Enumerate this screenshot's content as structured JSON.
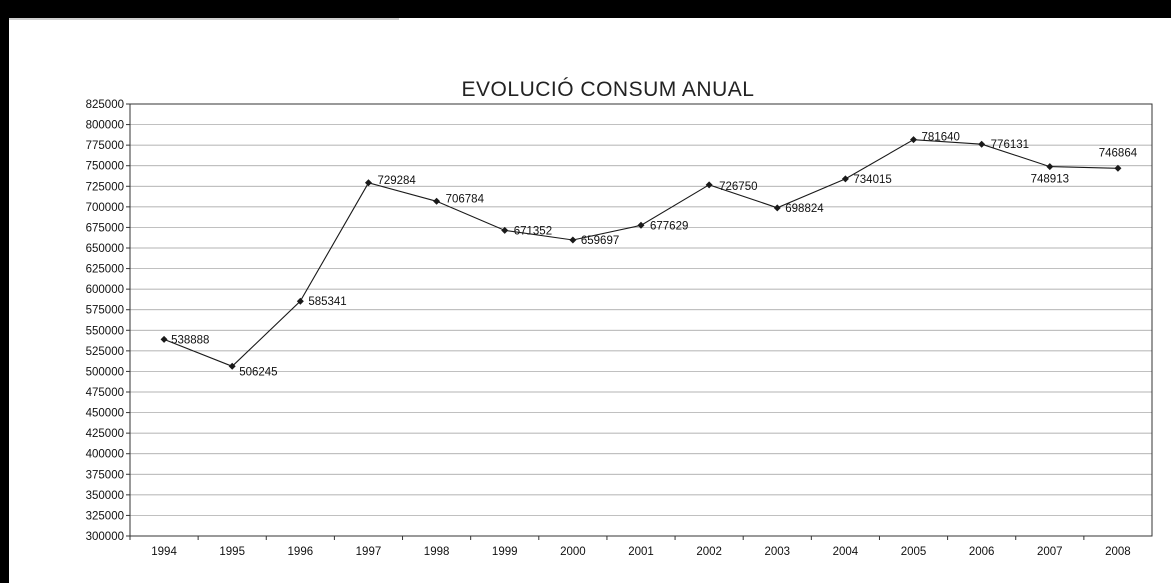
{
  "chart_data": {
    "type": "line",
    "title": "EVOLUCIÓ CONSUM ANUAL",
    "xlabel": "",
    "ylabel": "",
    "categories": [
      "1994",
      "1995",
      "1996",
      "1997",
      "1998",
      "1999",
      "2000",
      "2001",
      "2002",
      "2003",
      "2004",
      "2005",
      "2006",
      "2007",
      "2008"
    ],
    "series": [
      {
        "values": [
          538888,
          506245,
          585341,
          729284,
          706784,
          671352,
          659697,
          677629,
          726750,
          698824,
          734015,
          781640,
          776131,
          748913,
          746864
        ],
        "labels": [
          "538888",
          "506245",
          "585341",
          "729284",
          "706784",
          "671352",
          "659697",
          "677629",
          "726750",
          "698824",
          "734015",
          "781640",
          "776131",
          "748913",
          "746864"
        ]
      }
    ],
    "ylim": [
      300000,
      825000
    ],
    "ytick_step": 25000,
    "yticks": [
      "300000",
      "325000",
      "350000",
      "375000",
      "400000",
      "425000",
      "450000",
      "475000",
      "500000",
      "525000",
      "550000",
      "575000",
      "600000",
      "625000",
      "650000",
      "675000",
      "700000",
      "725000",
      "750000",
      "775000",
      "800000",
      "825000"
    ],
    "grid": true,
    "legend": "none",
    "colors": {
      "line": "#1a1a1a",
      "grid": "#9a9a9a"
    }
  }
}
